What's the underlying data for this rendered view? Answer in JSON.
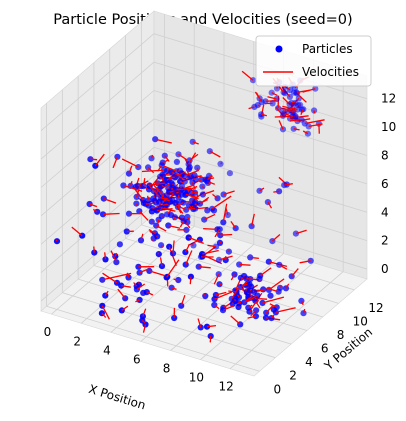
{
  "chart_data": {
    "type": "scatter3d",
    "title": "Particle Positions and Velocities (seed=0)",
    "xlabel": "X Position",
    "ylabel": "Y Position",
    "zlabel": "",
    "x_ticks": [
      "0",
      "2",
      "4",
      "6",
      "8",
      "10",
      "12"
    ],
    "y_ticks": [
      "0",
      "2",
      "4",
      "6",
      "8",
      "10",
      "12"
    ],
    "z_ticks": [
      "0",
      "2",
      "4",
      "6",
      "8",
      "10",
      "12"
    ],
    "xlim": [
      -0.7,
      13.6
    ],
    "ylim": [
      -0.7,
      13.6
    ],
    "zlim": [
      -0.7,
      13.6
    ],
    "grid": true,
    "legend": {
      "placement": "top-right",
      "entries": [
        {
          "label": "Particles",
          "marker": "dot",
          "color": "#0000ff"
        },
        {
          "label": "Velocities",
          "marker": "line",
          "color": "#ff0000"
        }
      ]
    },
    "clusters": [
      {
        "center": [
          4.5,
          6.5,
          6.0
        ],
        "spread": 1.3,
        "count": 150
      },
      {
        "center": [
          9.5,
          12.0,
          11.0
        ],
        "spread": 0.9,
        "count": 55
      },
      {
        "center": [
          11.0,
          3.5,
          2.0
        ],
        "spread": 0.9,
        "count": 55
      },
      {
        "center": [
          5.0,
          1.5,
          3.0
        ],
        "spread": 3.0,
        "count": 60
      },
      {
        "center": [
          8.0,
          8.0,
          4.0
        ],
        "spread": 3.5,
        "count": 50
      }
    ],
    "seed": 0,
    "colors": {
      "particles": "#0000ff",
      "velocities": "#ff0000"
    }
  }
}
